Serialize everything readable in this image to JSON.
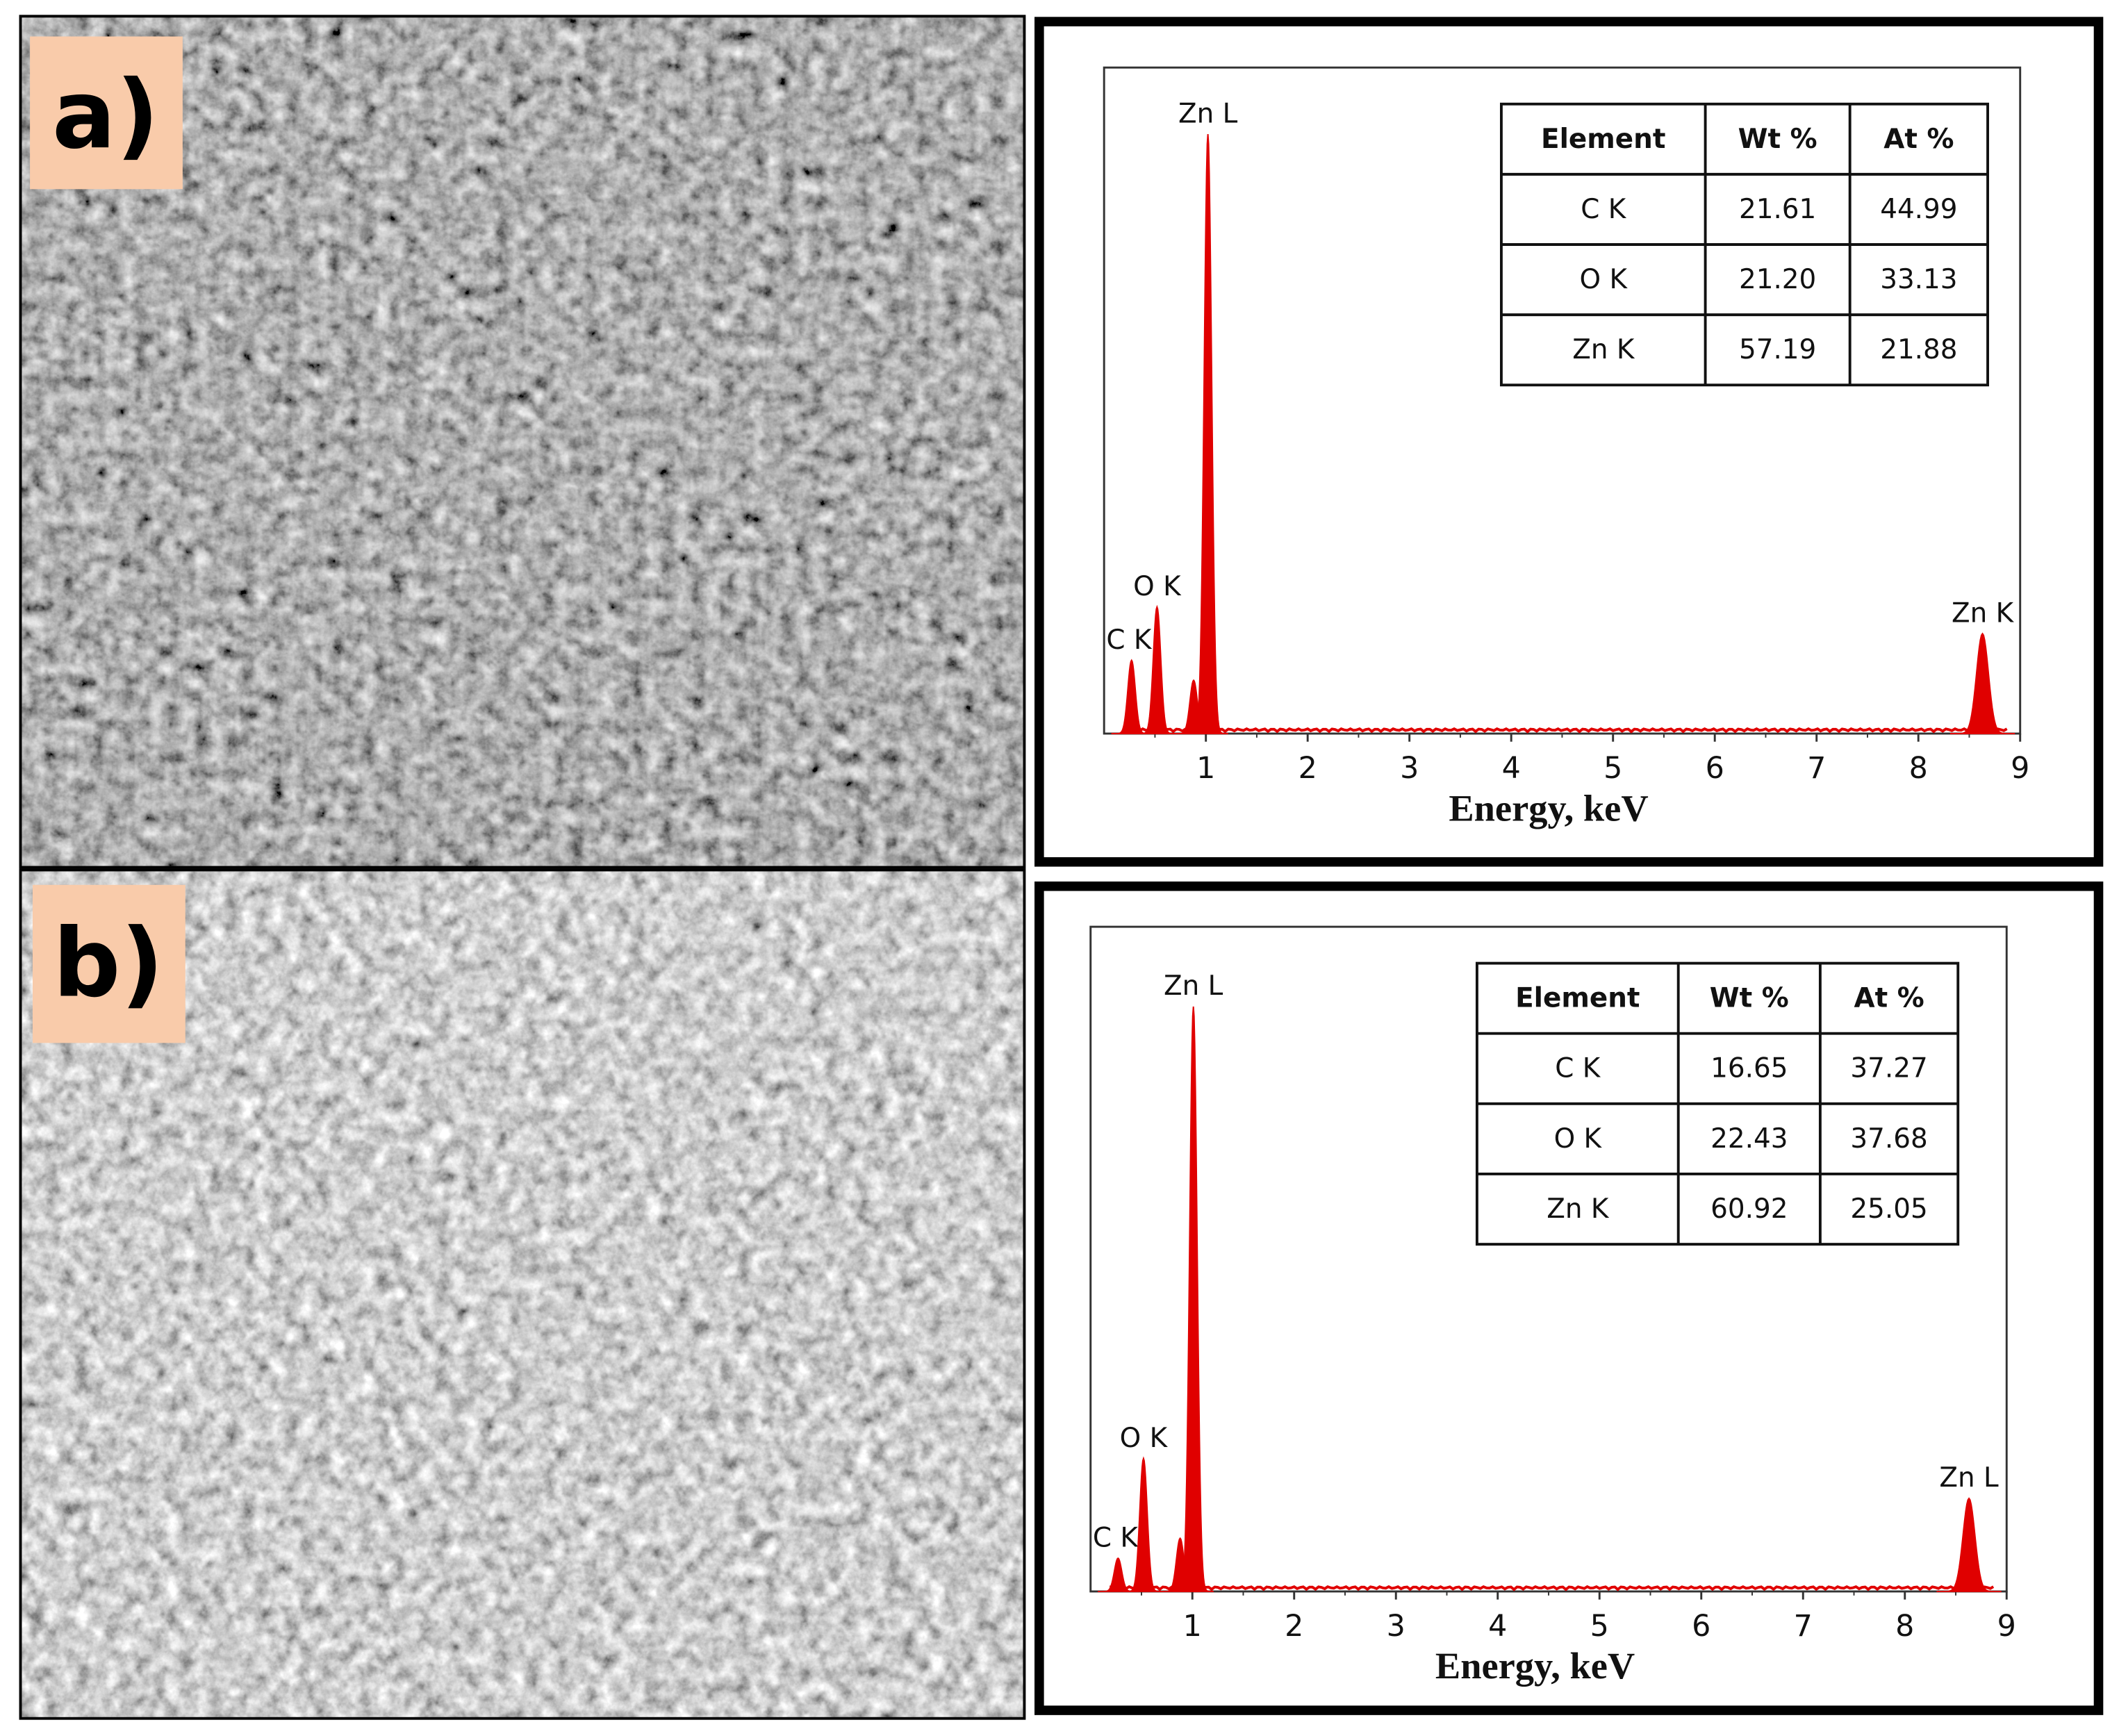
{
  "panels": [
    {
      "label": "a)",
      "spectrum": {
        "type": "spectrum",
        "xlabel": "Energy, keV",
        "xlim": [
          0,
          9
        ],
        "xticks": [
          1,
          2,
          3,
          4,
          5,
          6,
          7,
          8,
          9
        ],
        "ylim": [
          0,
          100
        ],
        "color": "#e00000",
        "peaks": {
          "labels": [
            "C K",
            "O K",
            null,
            "Zn L",
            "Zn K"
          ],
          "x": [
            0.27,
            0.52,
            0.88,
            1.02,
            8.63
          ],
          "values": [
            11,
            19,
            8,
            90,
            15
          ]
        }
      },
      "table": {
        "header": [
          "Element",
          "Wt %",
          "At %"
        ],
        "rows": [
          [
            "C K",
            "21.61",
            "44.99"
          ],
          [
            "O K",
            "21.20",
            "33.13"
          ],
          [
            "Zn K",
            "57.19",
            "21.88"
          ]
        ]
      }
    },
    {
      "label": "b)",
      "spectrum": {
        "type": "spectrum",
        "xlabel": "Energy, keV",
        "xlim": [
          0,
          9
        ],
        "xticks": [
          1,
          2,
          3,
          4,
          5,
          6,
          7,
          8,
          9
        ],
        "ylim": [
          0,
          100
        ],
        "color": "#e00000",
        "peaks": {
          "labels": [
            "C K",
            "O K",
            null,
            "Zn L",
            "Zn L"
          ],
          "x": [
            0.27,
            0.52,
            0.88,
            1.01,
            8.63
          ],
          "values": [
            5,
            20,
            8,
            88,
            14
          ]
        }
      },
      "table": {
        "header": [
          "Element",
          "Wt %",
          "At %"
        ],
        "rows": [
          [
            "C K",
            "16.65",
            "37.27"
          ],
          [
            "O K",
            "22.43",
            "37.68"
          ],
          [
            "Zn K",
            "60.92",
            "25.05"
          ]
        ]
      }
    }
  ]
}
